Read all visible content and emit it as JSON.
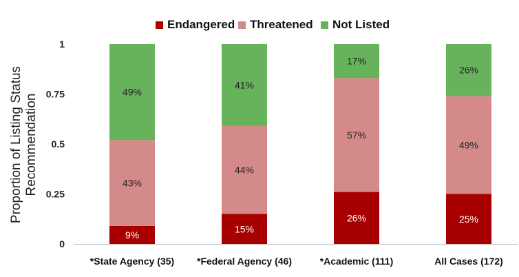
{
  "chart_data": {
    "type": "bar",
    "stacked": true,
    "title": "",
    "xlabel": "",
    "ylabel_lines": [
      "Proportion of Listing Status",
      "Recommendation"
    ],
    "ylim": [
      0,
      1
    ],
    "yticks": [
      "0",
      "0.25",
      "0.5",
      "0.75",
      "1"
    ],
    "ytick_values": [
      0,
      0.25,
      0.5,
      0.75,
      1
    ],
    "grid": false,
    "legend_position": "top",
    "categories": [
      "*State Agency (35)",
      "*Federal Agency (46)",
      "*Academic (111)",
      "All Cases (172)"
    ],
    "series": [
      {
        "name": "Endangered",
        "color": "#a80000",
        "values": [
          0.09,
          0.15,
          0.26,
          0.25
        ],
        "labels": [
          "9%",
          "15%",
          "26%",
          "25%"
        ],
        "label_color": "#ffffff"
      },
      {
        "name": "Threatened",
        "color": "#d48a88",
        "values": [
          0.43,
          0.44,
          0.57,
          0.49
        ],
        "labels": [
          "43%",
          "44%",
          "57%",
          "49%"
        ],
        "label_color": "#222222"
      },
      {
        "name": "Not Listed",
        "color": "#67b35b",
        "values": [
          0.49,
          0.41,
          0.17,
          0.26
        ],
        "labels": [
          "49%",
          "41%",
          "17%",
          "26%"
        ],
        "label_color": "#222222"
      }
    ]
  }
}
